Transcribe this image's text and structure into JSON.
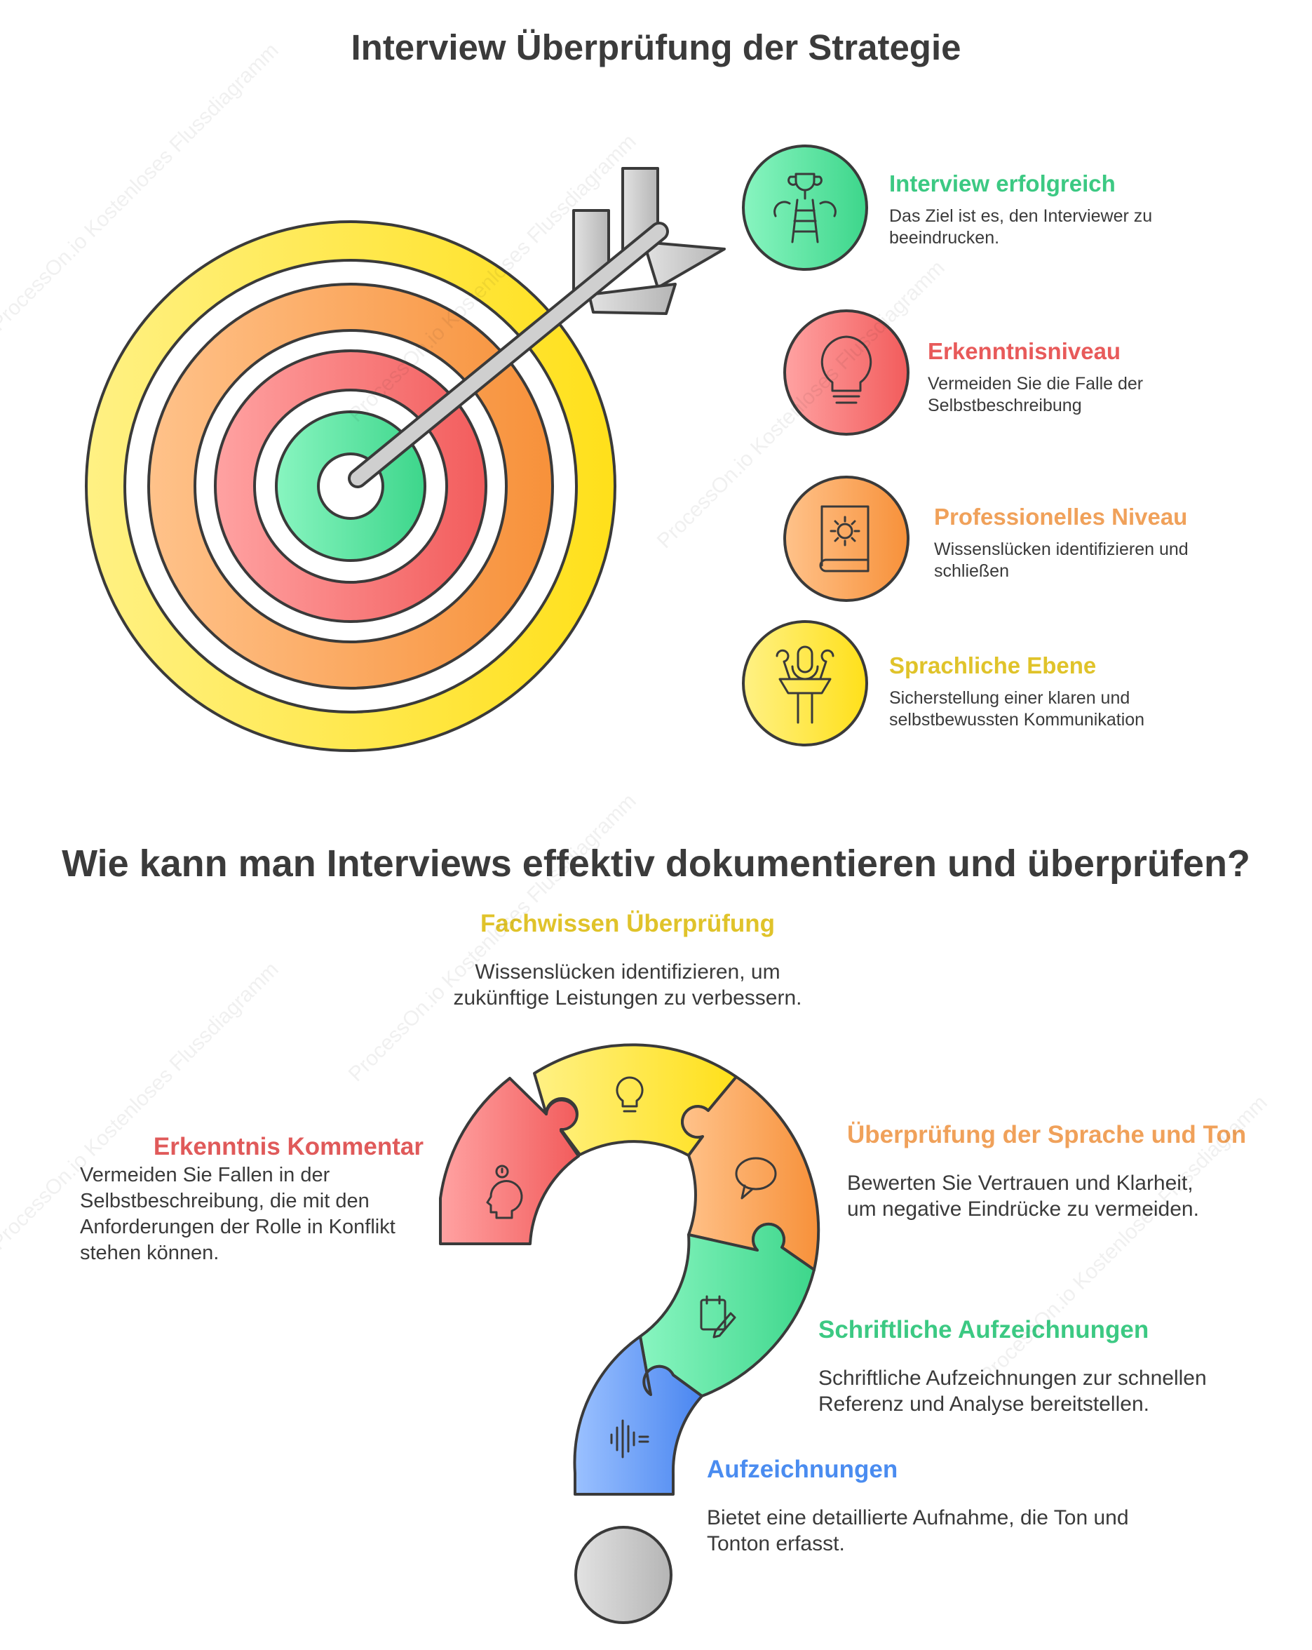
{
  "top": {
    "title": "Interview Überprüfung der Strategie",
    "items": [
      {
        "title": "Interview erfolgreich",
        "desc": "Das Ziel ist es, den Interviewer zu beeindrucken.",
        "color": "#3cc983",
        "icon": "trophy-ladder-icon"
      },
      {
        "title": "Erkenntnisniveau",
        "desc": "Vermeiden Sie die Falle der Selbstbeschreibung",
        "color": "#e85a5a",
        "icon": "lightbulb-icon"
      },
      {
        "title": "Professionelles Niveau",
        "desc": "Wissenslücken identifizieren und schließen",
        "color": "#f0a15a",
        "icon": "gear-book-icon"
      },
      {
        "title": "Sprachliche Ebene",
        "desc": "Sicherstellung einer klaren und selbstbewussten Kommunikation",
        "color": "#e0c32a",
        "icon": "microphone-podium-icon"
      }
    ]
  },
  "bottom": {
    "title": "Wie kann man Interviews effektiv dokumentieren und überprüfen?",
    "fachwissen": {
      "title": "Fachwissen Überprüfung",
      "desc_line1": "Wissenslücken identifizieren, um",
      "desc_line2": "zukünftige Leistungen zu verbessern.",
      "color": "#e0c32a"
    },
    "erkenntnis": {
      "title": "Erkenntnis Kommentar",
      "desc": "Vermeiden Sie Fallen in der Selbstbeschreibung, die mit den Anforderungen der Rolle in Konflikt stehen können.",
      "color": "#e05a5a"
    },
    "sprache": {
      "title": "Überprüfung der Sprache und Ton",
      "desc": "Bewerten Sie Vertrauen und Klarheit, um negative Eindrücke zu vermeiden.",
      "color": "#f0a15a"
    },
    "schriftlich": {
      "title": "Schriftliche Aufzeichnungen",
      "desc": "Schriftliche Aufzeichnungen zur schnellen Referenz und Analyse bereitstellen.",
      "color": "#3cc983"
    },
    "aufzeichnungen": {
      "title": "Aufzeichnungen",
      "desc": "Bietet eine detaillierte Aufnahme, die Ton und Tonton erfasst.",
      "color": "#4a8cf0"
    }
  },
  "watermark": "ProcessOn.io Kostenloses Flussdiagramm"
}
